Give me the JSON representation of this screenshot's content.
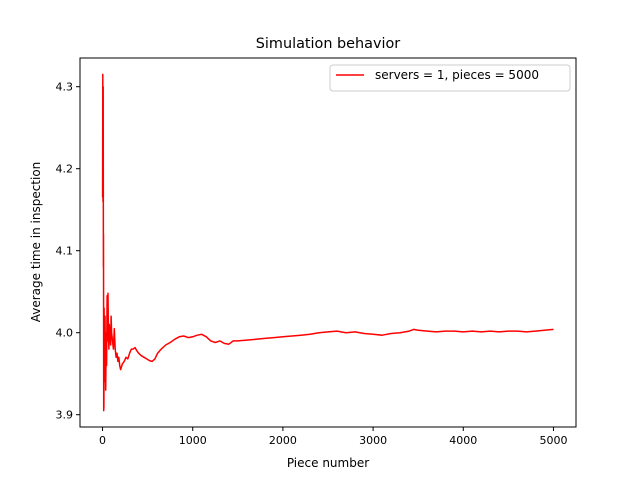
{
  "chart_data": {
    "type": "line",
    "title": "Simulation behavior",
    "xlabel": "Piece number",
    "ylabel": "Average time in inspection",
    "xlim": [
      -250,
      5250
    ],
    "ylim": [
      3.885,
      4.335
    ],
    "xticks": [
      0,
      1000,
      2000,
      3000,
      4000,
      5000
    ],
    "yticks": [
      3.9,
      4.0,
      4.1,
      4.2,
      4.3
    ],
    "xtick_labels": [
      "0",
      "1000",
      "2000",
      "3000",
      "4000",
      "5000"
    ],
    "ytick_labels": [
      "3.9",
      "4.0",
      "4.1",
      "4.2",
      "4.3"
    ],
    "grid": false,
    "legend_position": "top-right",
    "series": [
      {
        "name": "servers = 1, pieces = 5000",
        "color": "#ff0000",
        "x": [
          1,
          3,
          5,
          7,
          9,
          11,
          13,
          15,
          17,
          19,
          21,
          24,
          27,
          30,
          35,
          40,
          45,
          50,
          55,
          60,
          65,
          70,
          75,
          80,
          85,
          90,
          95,
          100,
          110,
          120,
          130,
          140,
          150,
          160,
          170,
          180,
          190,
          200,
          220,
          240,
          260,
          280,
          300,
          320,
          340,
          360,
          380,
          400,
          430,
          460,
          490,
          520,
          550,
          580,
          610,
          650,
          700,
          750,
          800,
          850,
          900,
          950,
          1000,
          1050,
          1100,
          1150,
          1200,
          1250,
          1300,
          1350,
          1400,
          1450,
          1500,
          1600,
          1700,
          1800,
          1900,
          2000,
          2100,
          2200,
          2300,
          2400,
          2500,
          2600,
          2700,
          2800,
          2900,
          3000,
          3100,
          3200,
          3300,
          3400,
          3450,
          3500,
          3600,
          3700,
          3800,
          3900,
          4000,
          4100,
          4200,
          4300,
          4400,
          4500,
          4600,
          4700,
          4800,
          4900,
          5000
        ],
        "y": [
          4.165,
          4.315,
          4.16,
          4.3,
          4.08,
          4.12,
          3.905,
          3.91,
          4.03,
          3.94,
          4.0,
          3.95,
          4.02,
          3.98,
          3.93,
          4.0,
          3.96,
          4.045,
          3.99,
          4.048,
          4.0,
          3.98,
          4.01,
          4.0,
          3.995,
          3.985,
          4.02,
          4.0,
          3.99,
          3.98,
          4.005,
          3.98,
          3.97,
          3.975,
          3.965,
          3.97,
          3.96,
          3.955,
          3.962,
          3.965,
          3.97,
          3.968,
          3.975,
          3.98,
          3.98,
          3.982,
          3.978,
          3.975,
          3.972,
          3.97,
          3.968,
          3.966,
          3.965,
          3.968,
          3.975,
          3.98,
          3.985,
          3.988,
          3.992,
          3.995,
          3.996,
          3.994,
          3.995,
          3.997,
          3.998,
          3.995,
          3.99,
          3.988,
          3.99,
          3.987,
          3.986,
          3.99,
          3.99,
          3.991,
          3.992,
          3.993,
          3.994,
          3.995,
          3.996,
          3.997,
          3.998,
          4.0,
          4.001,
          4.002,
          4.0,
          4.001,
          3.999,
          3.998,
          3.997,
          3.999,
          4.0,
          4.002,
          4.004,
          4.003,
          4.002,
          4.001,
          4.002,
          4.002,
          4.001,
          4.002,
          4.001,
          4.002,
          4.001,
          4.002,
          4.002,
          4.001,
          4.002,
          4.003,
          4.004
        ]
      }
    ]
  }
}
